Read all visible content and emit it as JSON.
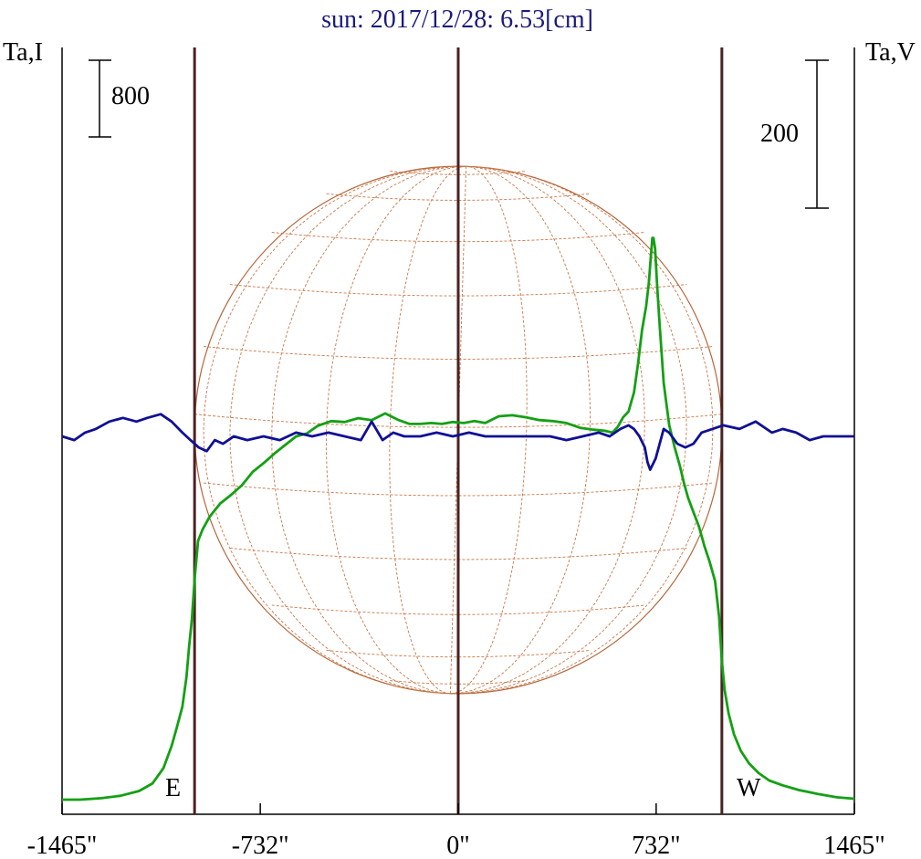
{
  "chart_data": {
    "type": "line",
    "title": "sun: 2017/12/28: 6.53[cm]",
    "left_axis_label": "Ta,I",
    "right_axis_label": "Ta,V",
    "left_scale_bar_label": "800",
    "right_scale_bar_label": "200",
    "left_scale_bar_value": 800,
    "right_scale_bar_value": 200,
    "east_label": "E",
    "west_label": "W",
    "xlim": [
      -1465,
      1465
    ],
    "x_ticks": [
      -1465,
      -732,
      0,
      732,
      1465
    ],
    "x_tick_labels": [
      "-1465\"",
      "-732\"",
      "0\"",
      "732\"",
      "1465\""
    ],
    "vertical_lines": [
      -975,
      0,
      975
    ],
    "solar_radius": 975,
    "colors": {
      "stokes_i": "#14a014",
      "stokes_v": "#101094",
      "limb_lines": "#4a2222",
      "disk": "#b5653a",
      "grid": "#c8784a"
    },
    "series": [
      {
        "key": "stokes_i",
        "x": [
          -1465,
          -1400,
          -1320,
          -1250,
          -1180,
          -1130,
          -1090,
          -1060,
          -1040,
          -1020,
          -1005,
          -995,
          -985,
          -975,
          -962,
          -945,
          -920,
          -880,
          -840,
          -800,
          -760,
          -720,
          -680,
          -640,
          -600,
          -560,
          -520,
          -470,
          -420,
          -370,
          -320,
          -270,
          -220,
          -180,
          -140,
          -100,
          -60,
          -20,
          20,
          60,
          100,
          150,
          200,
          250,
          300,
          350,
          400,
          450,
          500,
          540,
          570,
          590,
          610,
          630,
          650,
          665,
          680,
          695,
          705,
          712,
          718,
          722,
          728,
          735,
          745,
          760,
          780,
          800,
          820,
          835,
          850,
          870,
          890,
          910,
          930,
          950,
          965,
          975,
          985,
          1000,
          1020,
          1045,
          1075,
          1110,
          1150,
          1200,
          1260,
          1330,
          1400,
          1465
        ],
        "y": [
          0,
          0,
          15,
          40,
          90,
          170,
          330,
          560,
          760,
          970,
          1280,
          1600,
          1880,
          2300,
          2700,
          2820,
          2950,
          3090,
          3180,
          3280,
          3420,
          3510,
          3610,
          3700,
          3790,
          3820,
          3900,
          3950,
          3940,
          3980,
          3960,
          4030,
          3960,
          3920,
          3920,
          3930,
          3920,
          3940,
          3930,
          3950,
          3930,
          4000,
          4010,
          3990,
          3960,
          3950,
          3930,
          3880,
          3860,
          3850,
          3830,
          3890,
          3990,
          4050,
          4250,
          4550,
          4900,
          5150,
          5400,
          5650,
          5860,
          5860,
          5750,
          5400,
          4950,
          4350,
          3910,
          3680,
          3480,
          3300,
          3150,
          3000,
          2850,
          2650,
          2480,
          2280,
          1900,
          1450,
          1150,
          900,
          680,
          510,
          380,
          280,
          200,
          150,
          100,
          60,
          25,
          10
        ]
      },
      {
        "key": "stokes_v",
        "x": [
          -1465,
          -1420,
          -1380,
          -1340,
          -1290,
          -1240,
          -1190,
          -1150,
          -1100,
          -1060,
          -1020,
          -990,
          -960,
          -930,
          -900,
          -870,
          -830,
          -780,
          -720,
          -660,
          -600,
          -540,
          -480,
          -420,
          -360,
          -320,
          -280,
          -240,
          -200,
          -140,
          -80,
          -20,
          40,
          100,
          160,
          220,
          280,
          340,
          400,
          460,
          520,
          560,
          600,
          630,
          650,
          670,
          690,
          700,
          710,
          730,
          745,
          760,
          780,
          810,
          840,
          870,
          900,
          940,
          980,
          1040,
          1100,
          1160,
          1200,
          1250,
          1300,
          1350,
          1400,
          1465
        ],
        "y": [
          0,
          -5,
          5,
          10,
          20,
          25,
          20,
          25,
          30,
          20,
          5,
          -5,
          -15,
          -20,
          -5,
          -10,
          0,
          -5,
          0,
          -5,
          5,
          0,
          5,
          0,
          -5,
          20,
          -5,
          5,
          0,
          0,
          5,
          0,
          5,
          0,
          0,
          0,
          0,
          0,
          -5,
          0,
          5,
          0,
          10,
          15,
          10,
          0,
          -15,
          -35,
          -45,
          -30,
          -10,
          10,
          5,
          -10,
          -15,
          -10,
          5,
          10,
          15,
          10,
          20,
          5,
          10,
          5,
          -5,
          0,
          0,
          0
        ]
      }
    ]
  }
}
